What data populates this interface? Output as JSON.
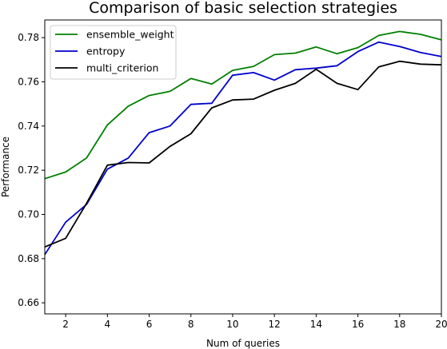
{
  "chart_data": {
    "type": "line",
    "title": "Comparison of basic selection strategies",
    "xlabel": "Num of queries",
    "ylabel": "Performance",
    "xlim": [
      1,
      20
    ],
    "ylim": [
      0.655,
      0.788
    ],
    "xticks": [
      2,
      4,
      6,
      8,
      10,
      12,
      14,
      16,
      18,
      20
    ],
    "yticks": [
      0.66,
      0.68,
      0.7,
      0.72,
      0.74,
      0.76,
      0.78
    ],
    "ytick_labels": [
      "0.66",
      "0.68",
      "0.70",
      "0.72",
      "0.74",
      "0.76",
      "0.78"
    ],
    "grid": false,
    "legend_position": "top-left",
    "x": [
      1,
      2,
      3,
      4,
      5,
      6,
      7,
      8,
      9,
      10,
      11,
      12,
      13,
      14,
      15,
      16,
      17,
      18,
      19,
      20
    ],
    "series": [
      {
        "name": "ensemble_weight",
        "color": "#008000",
        "values": [
          0.7162,
          0.7192,
          0.7255,
          0.7405,
          0.749,
          0.7538,
          0.7557,
          0.7615,
          0.759,
          0.7652,
          0.767,
          0.7723,
          0.773,
          0.7758,
          0.7727,
          0.7755,
          0.781,
          0.7828,
          0.7815,
          0.779
        ]
      },
      {
        "name": "entropy",
        "color": "#0000cc",
        "values": [
          0.6818,
          0.6965,
          0.7045,
          0.7205,
          0.7255,
          0.737,
          0.74,
          0.7498,
          0.7503,
          0.763,
          0.7642,
          0.7608,
          0.7655,
          0.7662,
          0.7673,
          0.7737,
          0.778,
          0.776,
          0.7733,
          0.7715
        ]
      },
      {
        "name": "multi_criterion",
        "color": "#000000",
        "values": [
          0.6853,
          0.6892,
          0.705,
          0.7223,
          0.7235,
          0.7233,
          0.7308,
          0.7365,
          0.7482,
          0.7518,
          0.7522,
          0.7562,
          0.7593,
          0.7657,
          0.7593,
          0.7565,
          0.7668,
          0.7693,
          0.768,
          0.7677
        ]
      }
    ]
  }
}
